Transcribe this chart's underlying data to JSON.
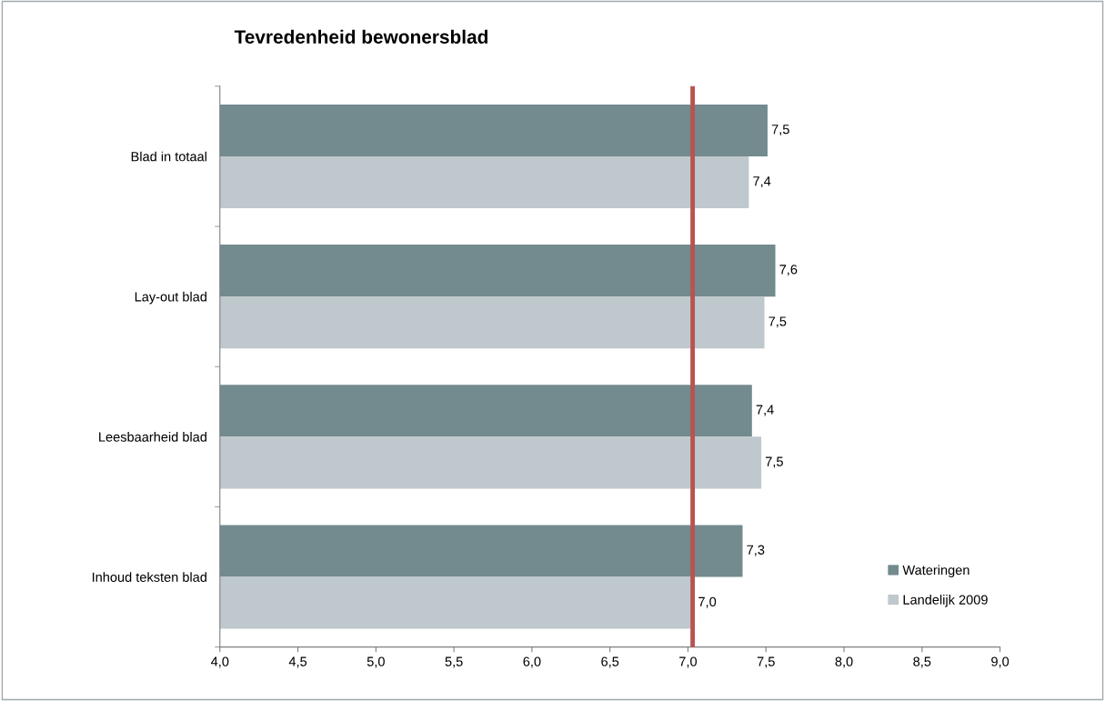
{
  "chart_data": {
    "type": "bar",
    "orientation": "horizontal",
    "title": "Tevredenheid bewonersblad",
    "categories": [
      "Blad in totaal",
      "Lay-out blad",
      "Leesbaarheid blad",
      "Inhoud teksten blad"
    ],
    "series": [
      {
        "name": "Wateringen",
        "color": "#738a8e",
        "values": [
          7.51,
          7.56,
          7.41,
          7.35
        ],
        "value_labels": [
          "7,5",
          "7,6",
          "7,4",
          "7,3"
        ]
      },
      {
        "name": "Landelijk 2009",
        "color": "#bfc8cc",
        "values": [
          7.39,
          7.49,
          7.47,
          7.04
        ],
        "value_labels": [
          "7,4",
          "7,5",
          "7,5",
          "7,0"
        ]
      }
    ],
    "xlim": [
      4,
      9
    ],
    "xticks": [
      {
        "value": 4,
        "label": "4,0"
      },
      {
        "value": 4.5,
        "label": "4,5"
      },
      {
        "value": 5,
        "label": "5,0"
      },
      {
        "value": 5.5,
        "label": "5,5"
      },
      {
        "value": 6,
        "label": "6,0"
      },
      {
        "value": 6.5,
        "label": "6,5"
      },
      {
        "value": 7,
        "label": "7,0"
      },
      {
        "value": 7.5,
        "label": "7,5"
      },
      {
        "value": 8,
        "label": "8,0"
      },
      {
        "value": 8.5,
        "label": "8,5"
      },
      {
        "value": 9,
        "label": "9,0"
      }
    ],
    "ref_lines": [
      {
        "axis": "x",
        "value": 7.03,
        "color": "#b85450"
      }
    ],
    "grid": false,
    "legend": "bottom right"
  }
}
